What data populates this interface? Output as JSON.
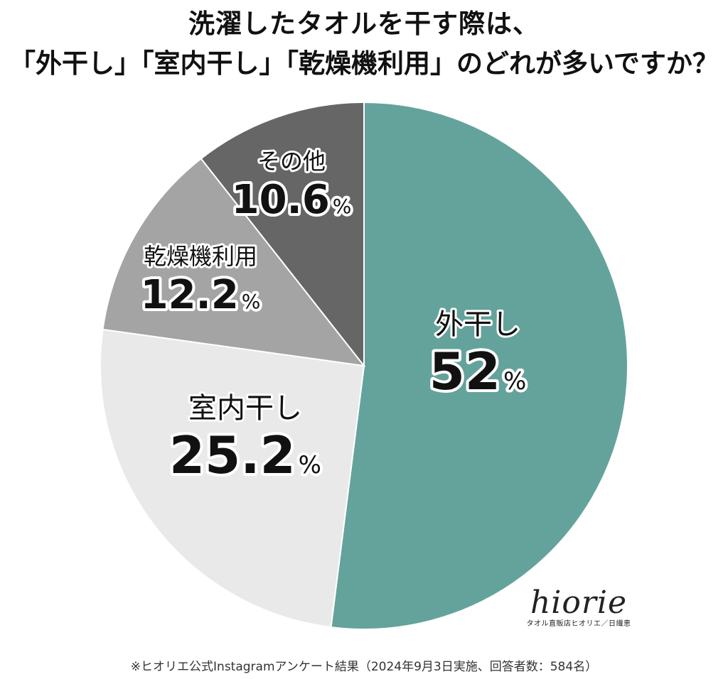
{
  "title_line1": "洗濯したタオルを干す際は、",
  "title_line2": "「外干し」「室内干し」「乾燥機利用」のどれが多いですか？",
  "chart_data": {
    "type": "pie",
    "unit": "%",
    "slices": [
      {
        "label": "外干し",
        "value": 52,
        "value_text": "52",
        "color": "#64a39b"
      },
      {
        "label": "室内干し",
        "value": 25.2,
        "value_text": "25.2",
        "color": "#e9e9e9"
      },
      {
        "label": "乾燥機利用",
        "value": 12.2,
        "value_text": "12.2",
        "color": "#a4a4a4"
      },
      {
        "label": "その他",
        "value": 10.6,
        "value_text": "10.6",
        "color": "#666666"
      }
    ],
    "start": "12 o'clock",
    "direction": "clockwise"
  },
  "brand": {
    "logo": "hiorie",
    "subtitle": "タオル直販店ヒオリエ／日繊恵"
  },
  "footnote": "※ヒオリエ公式Instagramアンケート結果（2024年9月3日実施、回答者数：584名）"
}
